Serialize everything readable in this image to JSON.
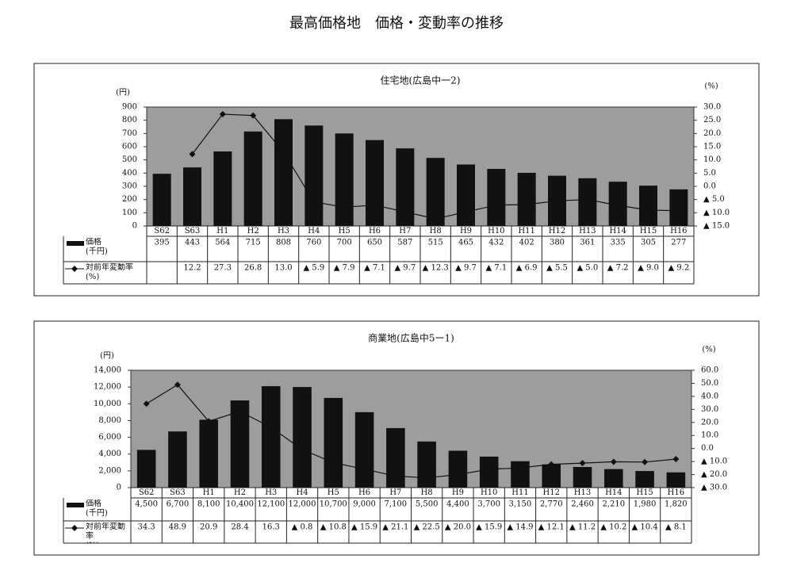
{
  "title": "最高価格地　価格・変動率の推移",
  "chart_data": [
    {
      "type": "bar",
      "title": "住宅地(広島中一2)",
      "y_unit": "(円)",
      "y2_unit": "(%)",
      "categories": [
        "S62",
        "S63",
        "H1",
        "H2",
        "H3",
        "H4",
        "H5",
        "H6",
        "H7",
        "H8",
        "H9",
        "H10",
        "H11",
        "H12",
        "H13",
        "H14",
        "H15",
        "H16"
      ],
      "series": [
        {
          "name": "価格\n(千円)",
          "type": "bar",
          "color": "#111111",
          "values": [
            395,
            443,
            564,
            715,
            808,
            760,
            700,
            650,
            587,
            515,
            465,
            432,
            402,
            380,
            361,
            335,
            305,
            277
          ]
        },
        {
          "name": "対前年変動率\n(%)",
          "type": "line",
          "axis": "y2",
          "color": "#111111",
          "values": [
            null,
            12.2,
            27.3,
            26.8,
            13.0,
            -5.9,
            -7.9,
            -7.1,
            -9.7,
            -12.3,
            -9.7,
            -7.1,
            -6.9,
            -5.5,
            -5.0,
            -7.2,
            -9.0,
            -9.2
          ],
          "value_labels": [
            null,
            "12.2",
            "27.3",
            "26.8",
            "13.0",
            "▲ 5.9",
            "▲ 7.9",
            "▲ 7.1",
            "▲ 9.7",
            "▲ 12.3",
            "▲ 9.7",
            "▲ 7.1",
            "▲ 6.9",
            "▲ 5.5",
            "▲ 5.0",
            "▲ 7.2",
            "▲ 9.0",
            "▲ 9.2"
          ]
        }
      ],
      "ylim": [
        0,
        900
      ],
      "yticks": [
        0,
        100,
        200,
        300,
        400,
        500,
        600,
        700,
        800,
        900
      ],
      "y2lim": [
        -15,
        30
      ],
      "y2ticks": [
        {
          "value": 30,
          "label": "30.0"
        },
        {
          "value": 25,
          "label": "25.0"
        },
        {
          "value": 20,
          "label": "20.0"
        },
        {
          "value": 15,
          "label": "15.0"
        },
        {
          "value": 10,
          "label": "10.0"
        },
        {
          "value": 5,
          "label": "5.0"
        },
        {
          "value": 0,
          "label": "0.0"
        },
        {
          "value": -5,
          "label": "▲ 5.0"
        },
        {
          "value": -10,
          "label": "▲ 10.0"
        },
        {
          "value": -15,
          "label": "▲ 15.0"
        }
      ]
    },
    {
      "type": "bar",
      "title": "商業地(広島中5ー1)",
      "y_unit": "(円)",
      "y2_unit": "(%)",
      "categories": [
        "S62",
        "S63",
        "H1",
        "H2",
        "H3",
        "H4",
        "H5",
        "H6",
        "H7",
        "H8",
        "H9",
        "H10",
        "H11",
        "H12",
        "H13",
        "H14",
        "H15",
        "H16"
      ],
      "series": [
        {
          "name": "価格\n(千円)",
          "type": "bar",
          "color": "#111111",
          "values": [
            4500,
            6700,
            8100,
            10400,
            12100,
            12000,
            10700,
            9000,
            7100,
            5500,
            4400,
            3700,
            3150,
            2770,
            2460,
            2210,
            1980,
            1820
          ],
          "value_labels": [
            "4,500",
            "6,700",
            "8,100",
            "10,400",
            "12,100",
            "12,000",
            "10,700",
            "9,000",
            "7,100",
            "5,500",
            "4,400",
            "3,700",
            "3,150",
            "2,770",
            "2,460",
            "2,210",
            "1,980",
            "1,820"
          ]
        },
        {
          "name": "対前年変動率\n(%)",
          "type": "line",
          "axis": "y2",
          "color": "#111111",
          "values": [
            34.3,
            48.9,
            20.9,
            28.4,
            16.3,
            -0.8,
            -10.8,
            -15.9,
            -21.1,
            -22.5,
            -20.0,
            -15.9,
            -14.9,
            -12.1,
            -11.2,
            -10.2,
            -10.4,
            -8.1
          ],
          "value_labels": [
            "34.3",
            "48.9",
            "20.9",
            "28.4",
            "16.3",
            "▲ 0.8",
            "▲ 10.8",
            "▲ 15.9",
            "▲ 21.1",
            "▲ 22.5",
            "▲ 20.0",
            "▲ 15.9",
            "▲ 14.9",
            "▲ 12.1",
            "▲ 11.2",
            "▲ 10.2",
            "▲ 10.4",
            "▲ 8.1"
          ]
        }
      ],
      "ylim": [
        0,
        14000
      ],
      "yticks": [
        0,
        {
          "value": 2000,
          "label": "2,000"
        },
        {
          "value": 4000,
          "label": "4,000"
        },
        {
          "value": 6000,
          "label": "6,000"
        },
        {
          "value": 8000,
          "label": "8,000"
        },
        {
          "value": 10000,
          "label": "10,000"
        },
        {
          "value": 12000,
          "label": "12,000"
        },
        {
          "value": 14000,
          "label": "14,000"
        }
      ],
      "y2lim": [
        -30,
        60
      ],
      "y2ticks": [
        {
          "value": 60,
          "label": "60.0"
        },
        {
          "value": 50,
          "label": "50.0"
        },
        {
          "value": 40,
          "label": "40.0"
        },
        {
          "value": 30,
          "label": "30.0"
        },
        {
          "value": 20,
          "label": "20.0"
        },
        {
          "value": 10,
          "label": "10.0"
        },
        {
          "value": 0,
          "label": "0.0"
        },
        {
          "value": -10,
          "label": "▲ 10.0"
        },
        {
          "value": -20,
          "label": "▲ 20.0"
        },
        {
          "value": -30,
          "label": "▲ 30.0"
        }
      ]
    }
  ]
}
